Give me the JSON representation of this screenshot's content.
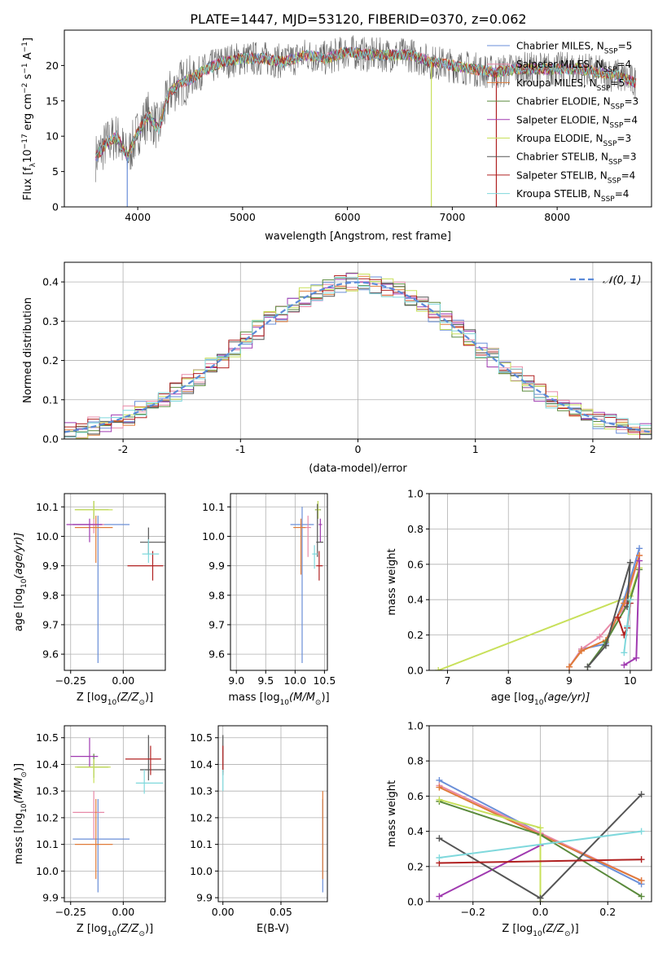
{
  "figure_title": "PLATE=1447, MJD=53120, FIBERID=0370, z=0.062",
  "colors": {
    "Chabrier MILES": "#6a8fd8",
    "Salpeter MILES": "#e88aa8",
    "Kroupa MILES": "#e07b39",
    "Chabrier ELODIE": "#5a8a3c",
    "Salpeter ELODIE": "#a03ab0",
    "Kroupa ELODIE": "#c8e05a",
    "Chabrier STELIB": "#555555",
    "Salpeter STELIB": "#b02020",
    "Kroupa STELIB": "#7fd8dc"
  },
  "chart_data": [
    {
      "id": "spectrum",
      "type": "line",
      "title": "",
      "xlabel": "wavelength [Angstrom, rest frame]",
      "ylabel_parts": [
        "Flux [f",
        "λ",
        "10",
        "−17",
        " erg cm",
        "−2",
        " s",
        "−1",
        " A",
        "−1",
        "]"
      ],
      "xlim": [
        3300,
        8900
      ],
      "ylim": [
        0,
        25
      ],
      "xticks": [
        4000,
        5000,
        6000,
        7000,
        8000
      ],
      "yticks": [
        0,
        5,
        10,
        15,
        20
      ],
      "legend_position": "upper right",
      "legend": [
        {
          "model": "Chabrier MILES",
          "prefix": "Chabrier MILES, N",
          "sub": "SSP",
          "suffix": "=5"
        },
        {
          "model": "Salpeter MILES",
          "prefix": "Salpeter MILES, N",
          "sub": "SSP",
          "suffix": "=4"
        },
        {
          "model": "Kroupa MILES",
          "prefix": "Kroupa MILES, N",
          "sub": "SSP",
          "suffix": "=5"
        },
        {
          "model": "Chabrier ELODIE",
          "prefix": "Chabrier ELODIE, N",
          "sub": "SSP",
          "suffix": "=3"
        },
        {
          "model": "Salpeter ELODIE",
          "prefix": "Salpeter ELODIE, N",
          "sub": "SSP",
          "suffix": "=4"
        },
        {
          "model": "Kroupa ELODIE",
          "prefix": "Kroupa ELODIE, N",
          "sub": "SSP",
          "suffix": "=3"
        },
        {
          "model": "Chabrier STELIB",
          "prefix": "Chabrier STELIB, N",
          "sub": "SSP",
          "suffix": "=3"
        },
        {
          "model": "Salpeter STELIB",
          "prefix": "Salpeter STELIB, N",
          "sub": "SSP",
          "suffix": "=4"
        },
        {
          "model": "Kroupa STELIB",
          "prefix": "Kroupa STELIB, N",
          "sub": "SSP",
          "suffix": "=4"
        }
      ],
      "data_envelope": {
        "x": [
          3600,
          3700,
          3800,
          3900,
          4000,
          4100,
          4200,
          4300,
          4400,
          4500,
          4600,
          4800,
          5000,
          5200,
          5400,
          5600,
          5800,
          6000,
          6200,
          6400,
          6600,
          6800,
          7000,
          7200,
          7400,
          7600,
          7800,
          8000,
          8200,
          8400,
          8600,
          8750
        ],
        "y": [
          7,
          9,
          10,
          7,
          10.5,
          13,
          11,
          16,
          17.5,
          18,
          19,
          20.5,
          21,
          21,
          20.5,
          21.5,
          21,
          22,
          21.5,
          21.5,
          21.5,
          20.5,
          20,
          19.5,
          19,
          19.5,
          19.5,
          19.5,
          19.5,
          19,
          18.5,
          17.5
        ]
      },
      "spikes": [
        {
          "model": "Chabrier MILES",
          "x": 3900,
          "y_low": 0
        },
        {
          "model": "Kroupa ELODIE",
          "x": 6800,
          "y_low": 0
        },
        {
          "model": "Salpeter STELIB",
          "x": 7420,
          "y_low": 0
        }
      ]
    },
    {
      "id": "residuals",
      "type": "histogram",
      "xlabel": "(data-model)/error",
      "ylabel": "Normed distribution",
      "xlim": [
        -2.5,
        2.5
      ],
      "ylim": [
        0,
        0.45
      ],
      "xticks": [
        -2,
        -1,
        0,
        1,
        2
      ],
      "yticks": [
        0.0,
        0.1,
        0.2,
        0.3,
        0.4
      ],
      "reference_label": "𝒩(0, 1)",
      "reference_mean": 0,
      "reference_sigma": 1,
      "grid": true,
      "bin_width": 0.1,
      "series_models": [
        "Chabrier MILES",
        "Salpeter MILES",
        "Kroupa MILES",
        "Chabrier ELODIE",
        "Salpeter ELODIE",
        "Kroupa ELODIE",
        "Chabrier STELIB",
        "Salpeter STELIB",
        "Kroupa STELIB"
      ]
    },
    {
      "id": "age_vs_Z",
      "type": "scatter",
      "xlabel_parts": [
        "Z [log",
        "10",
        "(Z/Z",
        "⊙",
        ")]"
      ],
      "ylabel_parts": [
        "age  [log",
        "10",
        "(age/yr)]"
      ],
      "xlim": [
        -0.28,
        0.2
      ],
      "ylim": [
        9.545,
        10.145
      ],
      "xticks": [
        -0.25,
        0.0
      ],
      "xticklabels": [
        "−0.25",
        "0.00"
      ],
      "yticks": [
        9.6,
        9.7,
        9.8,
        9.9,
        10.0,
        10.1
      ],
      "points": [
        {
          "model": "Chabrier MILES",
          "x": -0.12,
          "xerr": [
            0.12,
            0.15
          ],
          "y": 10.04,
          "yerr": [
            0.47,
            0.03
          ]
        },
        {
          "model": "Salpeter MILES",
          "x": -0.14,
          "xerr": [
            0.1,
            0.05
          ],
          "y": 10.04,
          "yerr": [
            0.03,
            0.03
          ]
        },
        {
          "model": "Kroupa MILES",
          "x": -0.13,
          "xerr": [
            0.1,
            0.08
          ],
          "y": 10.03,
          "yerr": [
            0.12,
            0.04
          ]
        },
        {
          "model": "Chabrier ELODIE",
          "x": -0.14,
          "xerr": [
            0.09,
            0.07
          ],
          "y": 10.09,
          "yerr": [
            0.03,
            0.03
          ]
        },
        {
          "model": "Salpeter ELODIE",
          "x": -0.16,
          "xerr": [
            0.11,
            0.06
          ],
          "y": 10.04,
          "yerr": [
            0.06,
            0.02
          ]
        },
        {
          "model": "Kroupa ELODIE",
          "x": -0.14,
          "xerr": [
            0.09,
            0.09
          ],
          "y": 10.09,
          "yerr": [
            0.03,
            0.03
          ]
        },
        {
          "model": "Chabrier STELIB",
          "x": 0.12,
          "xerr": [
            0.04,
            0.09
          ],
          "y": 9.98,
          "yerr": [
            0.04,
            0.05
          ]
        },
        {
          "model": "Salpeter STELIB",
          "x": 0.14,
          "xerr": [
            0.12,
            0.05
          ],
          "y": 9.9,
          "yerr": [
            0.05,
            0.05
          ]
        },
        {
          "model": "Kroupa STELIB",
          "x": 0.12,
          "xerr": [
            0.03,
            0.05
          ],
          "y": 9.94,
          "yerr": [
            0.03,
            0.05
          ]
        }
      ]
    },
    {
      "id": "age_vs_mass",
      "type": "scatter",
      "xlabel_parts": [
        "mass [log",
        "10",
        "(M/M",
        "⊙",
        ")]"
      ],
      "xlim": [
        8.9,
        10.55
      ],
      "ylim": [
        9.545,
        10.145
      ],
      "xticks": [
        9.0,
        9.5,
        10.0,
        10.5
      ],
      "xticklabels": [
        "9.0",
        "9.5",
        "10.0",
        "10.5"
      ],
      "yticks": [
        9.6,
        9.7,
        9.8,
        9.9,
        10.0,
        10.1
      ],
      "points": [
        {
          "model": "Chabrier MILES",
          "x": 10.12,
          "xerr": [
            0.2,
            0.2
          ],
          "y": 10.04,
          "yerr": [
            0.47,
            0.06
          ]
        },
        {
          "model": "Salpeter MILES",
          "x": 10.22,
          "xerr": [
            0.1,
            0.05
          ],
          "y": 10.03,
          "yerr": [
            0.1,
            0.04
          ]
        },
        {
          "model": "Kroupa MILES",
          "x": 10.1,
          "xerr": [
            0.13,
            0.08
          ],
          "y": 10.03,
          "yerr": [
            0.16,
            0.03
          ]
        },
        {
          "model": "Chabrier ELODIE",
          "x": 10.39,
          "xerr": [
            0.05,
            0.05
          ],
          "y": 10.09,
          "yerr": [
            0.03,
            0.03
          ]
        },
        {
          "model": "Salpeter ELODIE",
          "x": 10.43,
          "xerr": [
            0.03,
            0.03
          ],
          "y": 10.04,
          "yerr": [
            0.06,
            0.02
          ]
        },
        {
          "model": "Kroupa ELODIE",
          "x": 10.39,
          "xerr": [
            0.04,
            0.04
          ],
          "y": 10.09,
          "yerr": [
            0.03,
            0.03
          ]
        },
        {
          "model": "Chabrier STELIB",
          "x": 10.38,
          "xerr": [
            0.02,
            0.1
          ],
          "y": 9.98,
          "yerr": [
            0.05,
            0.13
          ]
        },
        {
          "model": "Salpeter STELIB",
          "x": 10.41,
          "xerr": [
            0.05,
            0.06
          ],
          "y": 9.9,
          "yerr": [
            0.05,
            0.05
          ]
        },
        {
          "model": "Kroupa STELIB",
          "x": 10.33,
          "xerr": [
            0.04,
            0.05
          ],
          "y": 9.94,
          "yerr": [
            0.05,
            0.03
          ]
        }
      ]
    },
    {
      "id": "weight_vs_age",
      "type": "line",
      "xlabel_parts": [
        "age  [log",
        "10",
        "(age/yr)]"
      ],
      "ylabel": "mass weight",
      "xlim": [
        6.7,
        10.35
      ],
      "ylim": [
        0,
        1.0
      ],
      "xticks": [
        7,
        8,
        9,
        10
      ],
      "yticks": [
        0.0,
        0.2,
        0.4,
        0.6,
        0.8,
        1.0
      ],
      "series": [
        {
          "model": "Kroupa ELODIE",
          "x": [
            6.85,
            10.0,
            10.15
          ],
          "y": [
            0.0,
            0.42,
            0.58
          ]
        },
        {
          "model": "Chabrier MILES",
          "x": [
            9.0,
            9.2,
            9.6,
            9.9,
            10.15
          ],
          "y": [
            0.02,
            0.12,
            0.15,
            0.4,
            0.69
          ]
        },
        {
          "model": "Salpeter MILES",
          "x": [
            9.0,
            9.2,
            9.5,
            9.9,
            10.15
          ],
          "y": [
            0.02,
            0.12,
            0.19,
            0.35,
            0.65
          ]
        },
        {
          "model": "Kroupa MILES",
          "x": [
            9.0,
            9.2,
            9.6,
            9.9,
            10.15
          ],
          "y": [
            0.02,
            0.11,
            0.17,
            0.38,
            0.65
          ]
        },
        {
          "model": "Chabrier ELODIE",
          "x": [
            9.3,
            9.6,
            10.0,
            10.15
          ],
          "y": [
            0.02,
            0.16,
            0.4,
            0.57
          ]
        },
        {
          "model": "Salpeter ELODIE",
          "x": [
            9.9,
            10.1,
            10.15
          ],
          "y": [
            0.03,
            0.07,
            0.62
          ]
        },
        {
          "model": "Chabrier STELIB",
          "x": [
            9.3,
            9.6,
            10.0,
            9.95
          ],
          "y": [
            0.02,
            0.14,
            0.61,
            0.36
          ]
        },
        {
          "model": "Salpeter STELIB",
          "x": [
            9.8,
            9.9,
            9.95,
            10.0
          ],
          "y": [
            0.3,
            0.2,
            0.24,
            0.38
          ]
        },
        {
          "model": "Kroupa STELIB",
          "x": [
            9.9,
            9.95,
            10.0
          ],
          "y": [
            0.1,
            0.25,
            0.4
          ]
        }
      ]
    },
    {
      "id": "mass_vs_Z",
      "type": "scatter",
      "xlabel_parts": [
        "Z [log",
        "10",
        "(Z/Z",
        "⊙",
        ")]"
      ],
      "ylabel_parts": [
        "mass [log",
        "10",
        "(M/M",
        "⊙",
        ")]"
      ],
      "xlim": [
        -0.28,
        0.2
      ],
      "ylim": [
        9.885,
        10.545
      ],
      "xticks": [
        -0.25,
        0.0
      ],
      "xticklabels": [
        "−0.25",
        "0.00"
      ],
      "yticks": [
        9.9,
        10.0,
        10.1,
        10.2,
        10.3,
        10.4,
        10.5
      ],
      "points": [
        {
          "model": "Chabrier MILES",
          "x": -0.12,
          "xerr": [
            0.12,
            0.15
          ],
          "y": 10.12,
          "yerr": [
            0.2,
            0.15
          ]
        },
        {
          "model": "Salpeter MILES",
          "x": -0.14,
          "xerr": [
            0.1,
            0.05
          ],
          "y": 10.22,
          "yerr": [
            0.1,
            0.08
          ]
        },
        {
          "model": "Kroupa MILES",
          "x": -0.13,
          "xerr": [
            0.1,
            0.08
          ],
          "y": 10.1,
          "yerr": [
            0.13,
            0.17
          ]
        },
        {
          "model": "Chabrier ELODIE",
          "x": -0.14,
          "xerr": [
            0.08,
            0.07
          ],
          "y": 10.39,
          "yerr": [
            0.04,
            0.05
          ]
        },
        {
          "model": "Salpeter ELODIE",
          "x": -0.16,
          "xerr": [
            0.09,
            0.04
          ],
          "y": 10.43,
          "yerr": [
            0.04,
            0.07
          ]
        },
        {
          "model": "Kroupa ELODIE",
          "x": -0.14,
          "xerr": [
            0.09,
            0.08
          ],
          "y": 10.39,
          "yerr": [
            0.06,
            0.03
          ]
        },
        {
          "model": "Chabrier STELIB",
          "x": 0.12,
          "xerr": [
            0.04,
            0.09
          ],
          "y": 10.38,
          "yerr": [
            0.04,
            0.13
          ]
        },
        {
          "model": "Salpeter STELIB",
          "x": 0.13,
          "xerr": [
            0.12,
            0.05
          ],
          "y": 10.42,
          "yerr": [
            0.06,
            0.05
          ]
        },
        {
          "model": "Kroupa STELIB",
          "x": 0.1,
          "xerr": [
            0.04,
            0.09
          ],
          "y": 10.33,
          "yerr": [
            0.04,
            0.05
          ]
        }
      ]
    },
    {
      "id": "mass_vs_ebv",
      "type": "scatter",
      "xlabel": "E(B-V)",
      "xlim": [
        -0.004,
        0.09
      ],
      "ylim": [
        9.885,
        10.545
      ],
      "xticks": [
        0.0,
        0.05
      ],
      "xticklabels": [
        "0.00",
        "0.05"
      ],
      "yticks": [
        9.9,
        10.0,
        10.1,
        10.2,
        10.3,
        10.4,
        10.5
      ],
      "points": [
        {
          "model": "Chabrier MILES",
          "x": 0.086,
          "xerr": [
            0,
            0
          ],
          "y": 10.12,
          "yerr": [
            0.2,
            0.15
          ]
        },
        {
          "model": "Kroupa MILES",
          "x": 0.086,
          "xerr": [
            0,
            0
          ],
          "y": 10.1,
          "yerr": [
            0.13,
            0.2
          ]
        },
        {
          "model": "Chabrier STELIB",
          "x": 0.0,
          "xerr": [
            0,
            0
          ],
          "y": 10.42,
          "yerr": [
            0.06,
            0.09
          ]
        },
        {
          "model": "Salpeter STELIB",
          "x": 0.0,
          "xerr": [
            0,
            0
          ],
          "y": 10.42,
          "yerr": [
            0.05,
            0.05
          ]
        },
        {
          "model": "Kroupa STELIB",
          "x": 0.0,
          "xerr": [
            0,
            0
          ],
          "y": 10.34,
          "yerr": [
            0.04,
            0.04
          ]
        }
      ]
    },
    {
      "id": "weight_vs_Z",
      "type": "line",
      "xlabel_parts": [
        "Z [log",
        "10",
        "(Z/Z",
        "⊙",
        ")]"
      ],
      "ylabel": "mass weight",
      "xlim": [
        -0.33,
        0.33
      ],
      "ylim": [
        0,
        1.0
      ],
      "xticks": [
        -0.2,
        0.0,
        0.2
      ],
      "xticklabels": [
        "−0.2",
        "0.0",
        "0.2"
      ],
      "yticks": [
        0.0,
        0.2,
        0.4,
        0.6,
        0.8,
        1.0
      ],
      "series": [
        {
          "model": "Chabrier MILES",
          "x": [
            -0.3,
            0.0,
            0.3
          ],
          "y": [
            0.69,
            0.39,
            0.1
          ]
        },
        {
          "model": "Salpeter MILES",
          "x": [
            -0.3,
            0.0,
            0.3
          ],
          "y": [
            0.66,
            0.39,
            0.12
          ]
        },
        {
          "model": "Kroupa MILES",
          "x": [
            -0.3,
            0.0,
            0.3
          ],
          "y": [
            0.65,
            0.38,
            0.12
          ]
        },
        {
          "model": "Chabrier ELODIE",
          "x": [
            -0.3,
            0.0,
            0.3
          ],
          "y": [
            0.57,
            0.38,
            0.03
          ]
        },
        {
          "model": "Salpeter ELODIE",
          "x": [
            -0.3,
            0.0
          ],
          "y": [
            0.03,
            0.32
          ]
        },
        {
          "model": "Kroupa ELODIE",
          "x": [
            -0.3,
            0.0,
            0.0
          ],
          "y": [
            0.58,
            0.42,
            0.0
          ]
        },
        {
          "model": "Chabrier STELIB",
          "x": [
            -0.3,
            0.0,
            0.3
          ],
          "y": [
            0.36,
            0.02,
            0.61
          ]
        },
        {
          "model": "Salpeter STELIB",
          "x": [
            -0.3,
            0.3
          ],
          "y": [
            0.22,
            0.24
          ]
        },
        {
          "model": "Kroupa STELIB",
          "x": [
            -0.3,
            0.3
          ],
          "y": [
            0.25,
            0.4
          ]
        }
      ]
    }
  ]
}
